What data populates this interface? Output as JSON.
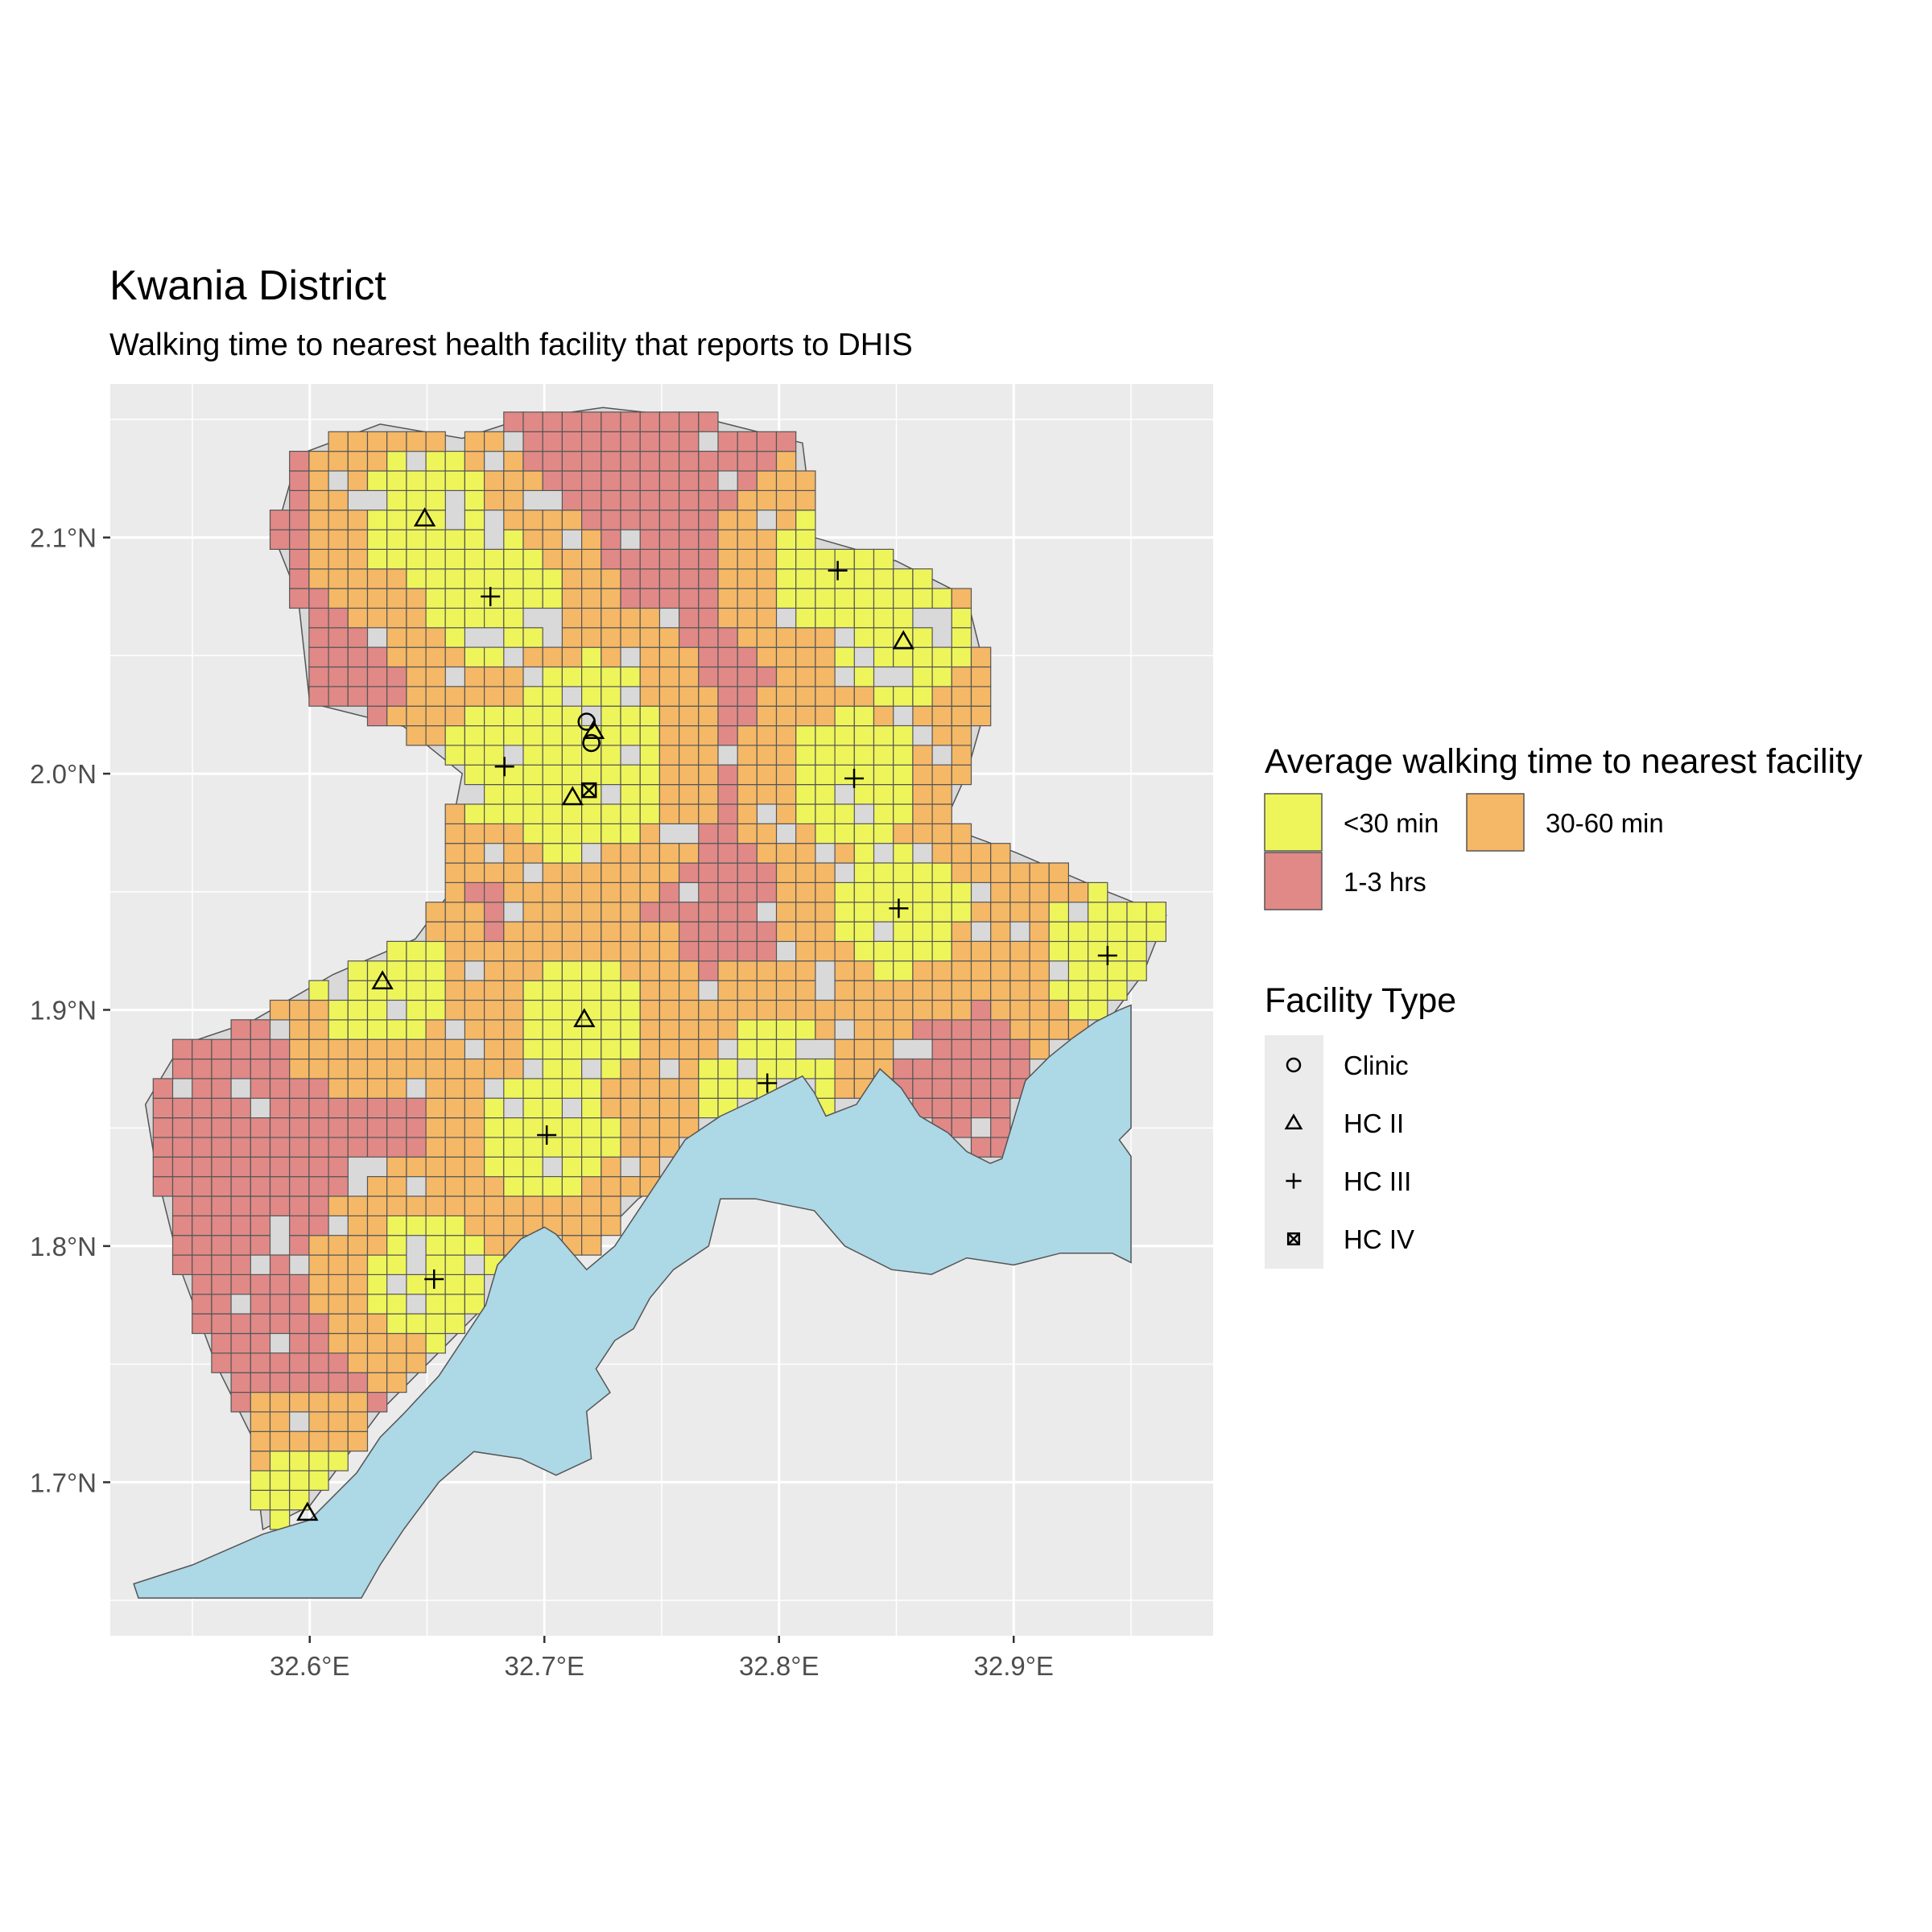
{
  "title": "Kwania District",
  "subtitle": "Walking time to nearest health facility that reports to DHIS",
  "axes": {
    "x": {
      "ticks": [
        "32.6°E",
        "32.7°E",
        "32.8°E",
        "32.9°E"
      ],
      "range": [
        32.515,
        32.985
      ]
    },
    "y": {
      "ticks": [
        "1.7°N",
        "1.8°N",
        "1.9°N",
        "2.0°N",
        "2.1°N"
      ],
      "range": [
        1.635,
        2.165
      ]
    },
    "grid": true
  },
  "colors": {
    "panel": "#ebebeb",
    "grid": "#ffffff",
    "district_land": "#d9d9d9",
    "lake": "#add8e6",
    "lt30": "#eef55a",
    "30to60": "#f5b866",
    "1to3": "#e08987"
  },
  "legend_time": {
    "title": "Average walking time to nearest facility",
    "items": [
      {
        "label": "<30 min",
        "color": "#eef55a"
      },
      {
        "label": "30-60 min",
        "color": "#f5b866"
      },
      {
        "label": "1-3 hrs",
        "color": "#e08987"
      }
    ]
  },
  "legend_type": {
    "title": "Facility Type",
    "items": [
      {
        "label": "Clinic",
        "shape": "circle"
      },
      {
        "label": "HC II",
        "shape": "triangle"
      },
      {
        "label": "HC III",
        "shape": "plus"
      },
      {
        "label": "HC IV",
        "shape": "square-cross"
      }
    ]
  },
  "facilities": [
    {
      "type": "HC II",
      "lon": 32.649,
      "lat": 2.108
    },
    {
      "type": "HC III",
      "lon": 32.677,
      "lat": 2.075
    },
    {
      "type": "HC III",
      "lon": 32.825,
      "lat": 2.086
    },
    {
      "type": "HC II",
      "lon": 32.853,
      "lat": 2.056
    },
    {
      "type": "Clinic",
      "lon": 32.718,
      "lat": 2.022
    },
    {
      "type": "HC II",
      "lon": 32.721,
      "lat": 2.018
    },
    {
      "type": "Clinic",
      "lon": 32.72,
      "lat": 2.013
    },
    {
      "type": "HC III",
      "lon": 32.683,
      "lat": 2.003
    },
    {
      "type": "HC II",
      "lon": 32.712,
      "lat": 1.99
    },
    {
      "type": "HC IV",
      "lon": 32.719,
      "lat": 1.993
    },
    {
      "type": "HC III",
      "lon": 32.832,
      "lat": 1.998
    },
    {
      "type": "HC III",
      "lon": 32.851,
      "lat": 1.943
    },
    {
      "type": "HC III",
      "lon": 32.94,
      "lat": 1.923
    },
    {
      "type": "HC II",
      "lon": 32.631,
      "lat": 1.912
    },
    {
      "type": "HC II",
      "lon": 32.717,
      "lat": 1.896
    },
    {
      "type": "HC III",
      "lon": 32.795,
      "lat": 1.869
    },
    {
      "type": "HC III",
      "lon": 32.701,
      "lat": 1.847
    },
    {
      "type": "HC III",
      "lon": 32.653,
      "lat": 1.786
    },
    {
      "type": "HC II",
      "lon": 32.599,
      "lat": 1.687
    }
  ]
}
